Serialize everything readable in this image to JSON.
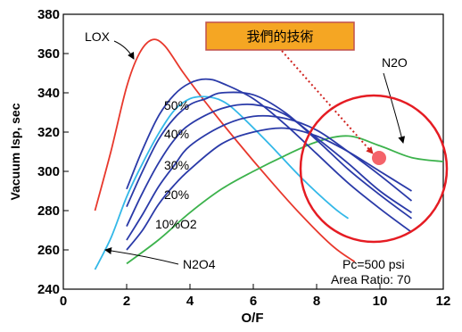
{
  "chart_data": {
    "type": "line",
    "xlabel": "O/F",
    "ylabel": "Vacuum Isp, sec",
    "xlim": [
      0,
      12
    ],
    "ylim": [
      240,
      380
    ],
    "xticks": [
      0,
      2,
      4,
      6,
      8,
      10,
      12
    ],
    "yticks": [
      240,
      260,
      280,
      300,
      320,
      340,
      360,
      380
    ],
    "series": [
      {
        "name": "LOX",
        "color": "#e8382c",
        "x": [
          1.0,
          1.5,
          2.0,
          2.4,
          2.8,
          3.2,
          3.8,
          4.5,
          5.5,
          6.5,
          7.5,
          8.5,
          9.2
        ],
        "y": [
          280,
          310,
          343,
          360,
          367,
          364,
          350,
          335,
          315,
          296,
          278,
          262,
          254
        ]
      },
      {
        "name": "N2O4",
        "color": "#33b8e8",
        "x": [
          1.0,
          1.5,
          2.0,
          2.5,
          3.0,
          3.5,
          4.0,
          4.5,
          5.0,
          5.5,
          6.5,
          7.5,
          8.5,
          9.0
        ],
        "y": [
          250,
          266,
          287,
          304,
          319,
          331,
          337,
          338,
          336,
          330,
          314,
          297,
          282,
          276
        ]
      },
      {
        "name": "N2O",
        "color": "#3cb24c",
        "x": [
          2.0,
          3.0,
          4.0,
          5.0,
          6.0,
          7.0,
          8.0,
          9.0,
          10.0,
          11.0,
          12.0
        ],
        "y": [
          253,
          265,
          279,
          291,
          300,
          308,
          315,
          318,
          313,
          307,
          305
        ]
      },
      {
        "name": "10%O2",
        "color": "#2a3aa8",
        "x": [
          2.0,
          2.5,
          3.0,
          3.5,
          4.0,
          5.0,
          6.0,
          7.0,
          8.0,
          9.0,
          10.0,
          11.0
        ],
        "y": [
          260,
          270,
          283,
          293,
          301,
          314,
          320,
          322,
          318,
          310,
          300,
          290
        ]
      },
      {
        "name": "20%",
        "color": "#2a3aa8",
        "x": [
          2.0,
          2.5,
          3.0,
          3.5,
          4.0,
          5.0,
          6.0,
          7.0,
          8.0,
          9.0,
          10.0,
          11.0
        ],
        "y": [
          265,
          278,
          292,
          303,
          313,
          323,
          328,
          327,
          321,
          310,
          298,
          285
        ]
      },
      {
        "name": "30%",
        "color": "#2a3aa8",
        "x": [
          2.0,
          2.5,
          3.0,
          3.5,
          4.0,
          5.0,
          6.0,
          7.0,
          8.0,
          9.0,
          10.0,
          11.0
        ],
        "y": [
          272,
          289,
          304,
          316,
          324,
          332,
          334,
          329,
          317,
          304,
          290,
          279
        ]
      },
      {
        "name": "40%",
        "color": "#2a3aa8",
        "x": [
          2.0,
          2.5,
          3.0,
          3.5,
          4.0,
          4.5,
          5.0,
          6.0,
          7.0,
          8.0,
          9.0,
          10.0,
          11.0
        ],
        "y": [
          282,
          300,
          316,
          327,
          334,
          337,
          340,
          339,
          330,
          316,
          301,
          288,
          276
        ]
      },
      {
        "name": "50%",
        "color": "#2a3aa8",
        "x": [
          2.0,
          2.5,
          3.0,
          3.5,
          4.0,
          4.5,
          5.0,
          6.0,
          7.0,
          8.0,
          9.0,
          10.0,
          11.0
        ],
        "y": [
          291,
          311,
          328,
          339,
          345,
          347,
          345,
          337,
          324,
          309,
          294,
          281,
          269
        ]
      }
    ],
    "series_labels": {
      "LOX": "LOX",
      "N2O4": "N2O4",
      "N2O": "N2O",
      "pct50": "50%",
      "pct40": "40%",
      "pct30": "30%",
      "pct20": "20%",
      "pct10": "10%O2"
    },
    "annotations": {
      "highlight_label": "我們的技術",
      "conditions_line1": "Pc=500 psi",
      "conditions_line2": "Area Ratio: 70"
    },
    "colors": {
      "axis": "#000000",
      "highlight_box_fill": "#f5a623",
      "highlight_box_border": "#c0504d",
      "highlight_circle": "#e51c23",
      "highlight_dot": "#f4636a",
      "arrow_dotted": "#d0231f"
    },
    "grid": false
  }
}
